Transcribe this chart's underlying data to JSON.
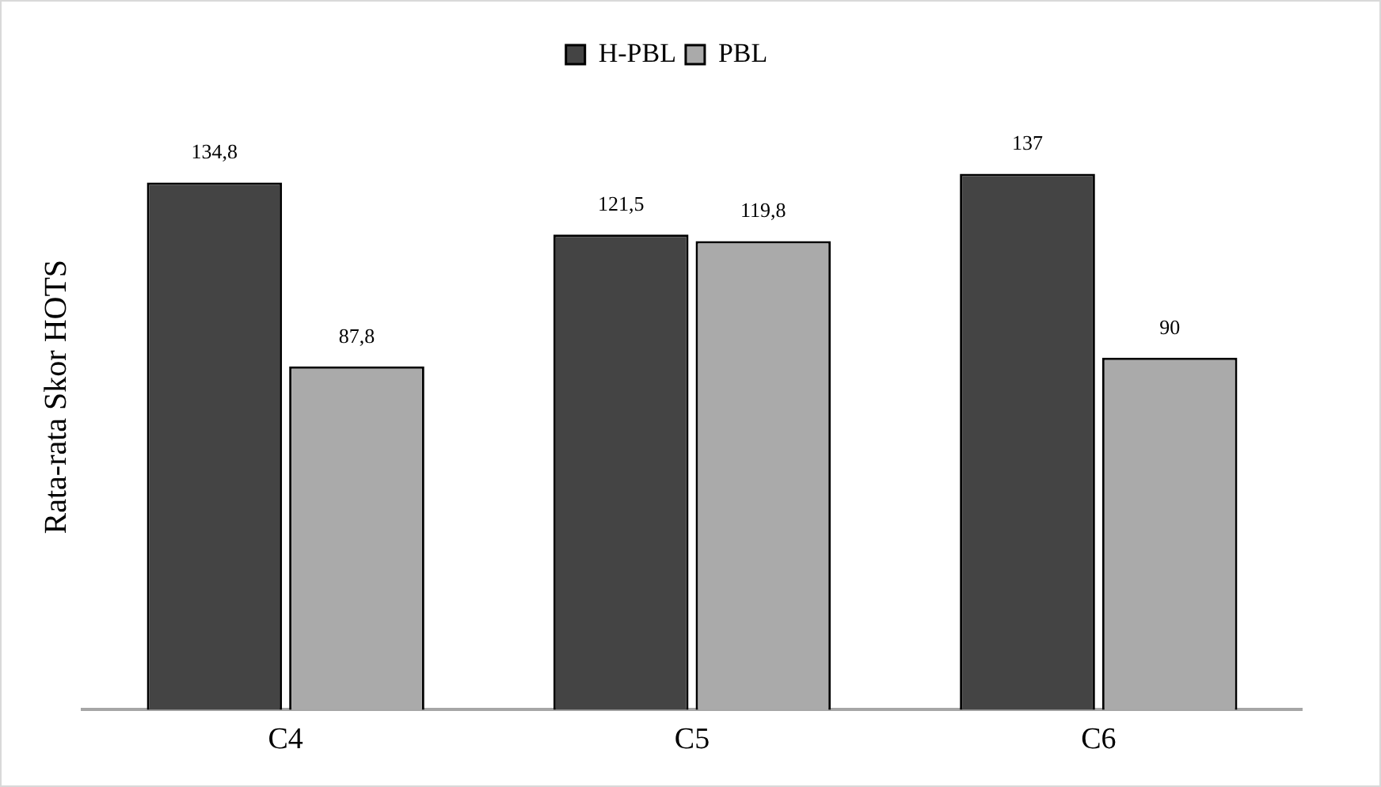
{
  "chart_data": {
    "type": "bar",
    "ylabel": "Rata-rata Skor HOTS",
    "categories": [
      "C4",
      "C5",
      "C6"
    ],
    "series": [
      {
        "name": "H-PBL",
        "color": "#444444",
        "values": [
          134.8,
          121.5,
          137
        ],
        "value_labels": [
          "134,8",
          "121,5",
          "137"
        ]
      },
      {
        "name": "PBL",
        "color": "#aaaaaa",
        "values": [
          87.8,
          119.8,
          90
        ],
        "value_labels": [
          "87,8",
          "119,8",
          "90"
        ]
      }
    ],
    "tick_labels": "x",
    "grid": false,
    "legend": "top"
  }
}
